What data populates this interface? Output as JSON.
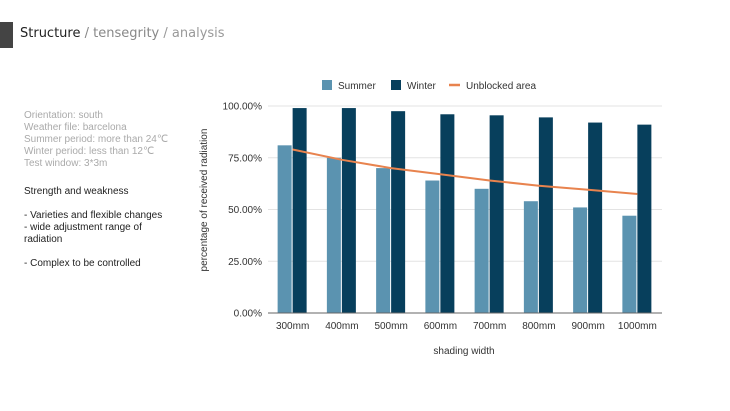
{
  "header": {
    "title": "Structure",
    "sep1": " / ",
    "sub1": "tensegrity",
    "sep2": " / ",
    "sub2": "analysis"
  },
  "info": [
    "Orientation: south",
    "Weather file: barcelona",
    "Summer period: more than 24℃",
    "Winter period: less than 12℃",
    "Test window: 3*3m"
  ],
  "notes": {
    "heading": "Strength and weakness",
    "items": [
      "- Varieties and flexible changes",
      "- wide adjustment range of",
      "radiation",
      "",
      "- Complex to be controlled"
    ]
  },
  "colors": {
    "summer": "#5b93b0",
    "winter": "#073f5c",
    "line": "#e8834e",
    "grid": "#e3e3e3"
  },
  "chart_data": {
    "type": "bar",
    "title": "",
    "xlabel": "shading width",
    "ylabel": "percentage of received radiation",
    "ylim": [
      0,
      100
    ],
    "yticks": [
      "0.00%",
      "25.00%",
      "50.00%",
      "75.00%",
      "100.00%"
    ],
    "ytick_values": [
      0,
      25,
      50,
      75,
      100
    ],
    "categories": [
      "300mm",
      "400mm",
      "500mm",
      "600mm",
      "700mm",
      "800mm",
      "900mm",
      "1000mm"
    ],
    "legend_position": "top",
    "grid": true,
    "series": [
      {
        "name": "Summer",
        "kind": "bar",
        "values": [
          81,
          75,
          70,
          64,
          60,
          54,
          51,
          47
        ]
      },
      {
        "name": "Winter",
        "kind": "bar",
        "values": [
          99,
          99,
          97.5,
          96,
          95.5,
          94.5,
          92,
          91
        ]
      },
      {
        "name": "Unblocked area",
        "kind": "line",
        "values": [
          79,
          74,
          70,
          67,
          64,
          61.5,
          59.5,
          57.5
        ]
      }
    ]
  }
}
